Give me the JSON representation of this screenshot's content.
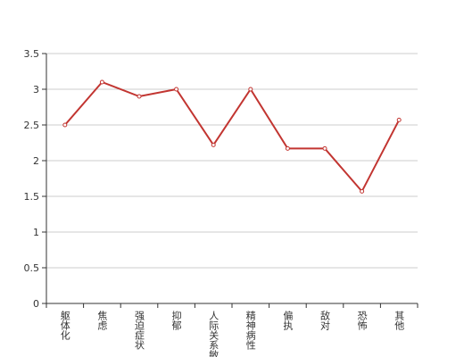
{
  "chart_data": {
    "type": "line",
    "categories": [
      "躯体化",
      "焦虑",
      "强迫症状",
      "抑郁",
      "人际关系敏感",
      "精神病性",
      "偏执",
      "敌对",
      "恐怖",
      "其他"
    ],
    "values": [
      2.5,
      3.1,
      2.9,
      3.0,
      2.22,
      3.0,
      2.17,
      2.17,
      1.57,
      2.57
    ],
    "color": "#c23531",
    "ylim": [
      0,
      3.5
    ],
    "yticks": [
      0,
      0.5,
      1,
      1.5,
      2,
      2.5,
      3,
      3.5
    ],
    "grid": true
  }
}
